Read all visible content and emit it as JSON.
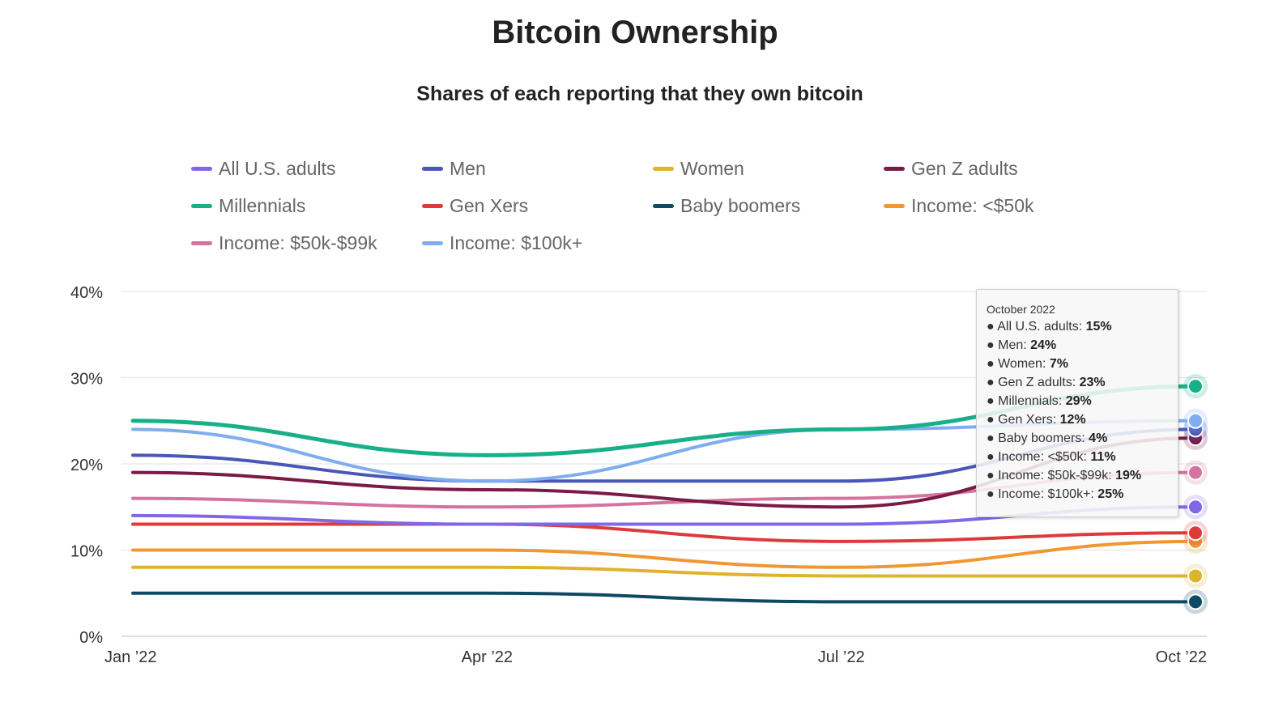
{
  "chart_data": {
    "type": "line",
    "title": "Bitcoin Ownership",
    "subtitle": "Shares of each reporting that they own bitcoin",
    "x": [
      "Jan ’22",
      "Apr ’22",
      "Jul ’22",
      "Oct ’22"
    ],
    "y_ticks": [
      "0%",
      "10%",
      "20%",
      "30%",
      "40%"
    ],
    "ylim": [
      0,
      40
    ],
    "y_unit": "%",
    "grid": true,
    "legend_position": "top",
    "series": [
      {
        "name": "All U.S. adults",
        "color": "#8068e6",
        "values": [
          14,
          13,
          13,
          15
        ]
      },
      {
        "name": "Men",
        "color": "#4a56b8",
        "values": [
          21,
          18,
          18,
          24
        ]
      },
      {
        "name": "Women",
        "color": "#e0b32c",
        "values": [
          8,
          8,
          7,
          7
        ]
      },
      {
        "name": "Gen Z adults",
        "color": "#7a1a45",
        "values": [
          19,
          17,
          15,
          23
        ]
      },
      {
        "name": "Millennials",
        "color": "#17b088",
        "values": [
          25,
          21,
          24,
          29
        ]
      },
      {
        "name": "Gen Xers",
        "color": "#dd3b3b",
        "values": [
          13,
          13,
          11,
          12
        ]
      },
      {
        "name": "Baby boomers",
        "color": "#0d4a63",
        "values": [
          5,
          5,
          4,
          4
        ]
      },
      {
        "name": "Income: <$50k",
        "color": "#ef9733",
        "values": [
          10,
          10,
          8,
          11
        ]
      },
      {
        "name": "Income: $50k-$99k",
        "color": "#d4749e",
        "values": [
          16,
          15,
          16,
          19
        ]
      },
      {
        "name": "Income: $100k+",
        "color": "#7fadef",
        "values": [
          24,
          18,
          24,
          25
        ]
      }
    ],
    "tooltip": {
      "header": "October 2022",
      "rows": [
        {
          "label": "All U.S. adults:",
          "value": "15%"
        },
        {
          "label": "Men:",
          "value": "24%"
        },
        {
          "label": "Women:",
          "value": "7%"
        },
        {
          "label": "Gen Z adults:",
          "value": "23%"
        },
        {
          "label": "Millennials:",
          "value": "29%"
        },
        {
          "label": "Gen Xers:",
          "value": "12%"
        },
        {
          "label": "Baby boomers:",
          "value": "4%"
        },
        {
          "label": "Income: <$50k:",
          "value": "11%"
        },
        {
          "label": "Income: $50k-$99k:",
          "value": "19%"
        },
        {
          "label": "Income: $100k+:",
          "value": "25%"
        }
      ]
    }
  }
}
